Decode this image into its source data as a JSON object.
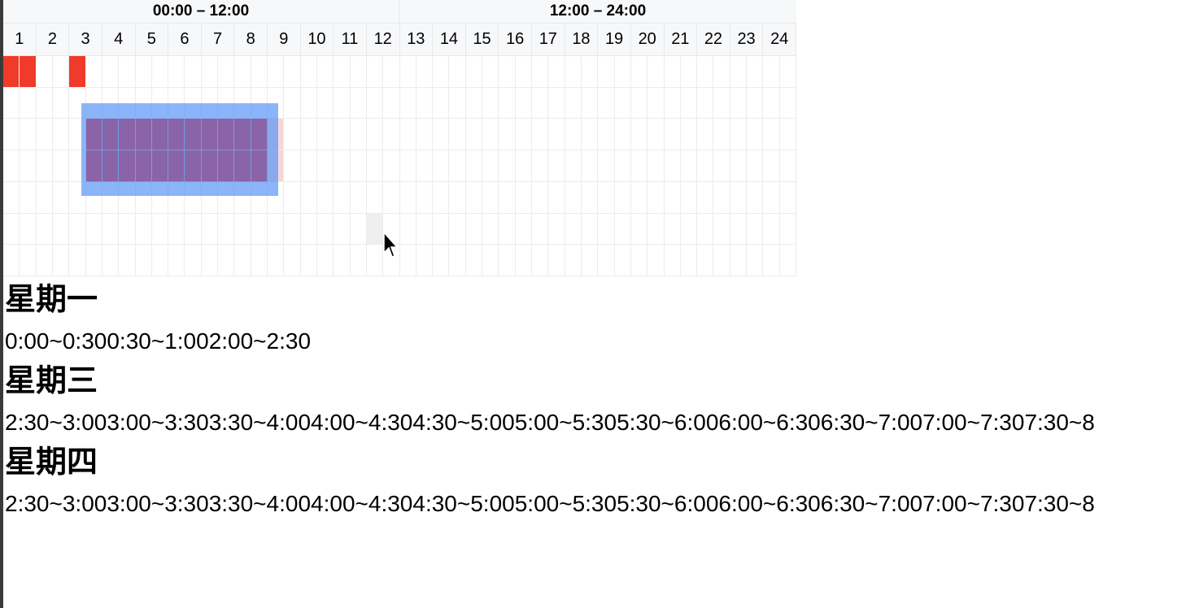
{
  "header": {
    "half_labels": [
      "00:00 – 12:00",
      "12:00 – 24:00"
    ],
    "hours": [
      "1",
      "2",
      "3",
      "4",
      "5",
      "6",
      "7",
      "8",
      "9",
      "10",
      "11",
      "12",
      "13",
      "14",
      "15",
      "16",
      "17",
      "18",
      "19",
      "20",
      "21",
      "22",
      "23",
      "24"
    ]
  },
  "schedule": {
    "rows": 7,
    "columns": 48,
    "selected_slots": [
      {
        "row": 0,
        "slots": [
          0,
          1,
          4
        ]
      },
      {
        "row": 2,
        "slots": [
          5,
          6,
          7,
          8,
          9,
          10,
          11,
          12,
          13,
          14,
          15
        ]
      },
      {
        "row": 3,
        "slots": [
          5,
          6,
          7,
          8,
          9,
          10,
          11,
          12,
          13,
          14,
          15
        ]
      }
    ]
  },
  "colors": {
    "selected": "#f03a2a",
    "dragging_selection": "#5a96f5",
    "overlap": "#8a64a6"
  },
  "summary": [
    {
      "day": "星期一",
      "ranges": "0:00~0:300:30~1:002:00~2:30"
    },
    {
      "day": "星期三",
      "ranges": "2:30~3:003:00~3:303:30~4:004:00~4:304:30~5:005:00~5:305:30~6:006:00~6:306:30~7:007:00~7:307:30~8"
    },
    {
      "day": "星期四",
      "ranges": "2:30~3:003:00~3:303:30~4:004:00~4:304:30~5:005:00~5:305:30~6:006:00~6:306:30~7:007:00~7:307:30~8"
    }
  ]
}
